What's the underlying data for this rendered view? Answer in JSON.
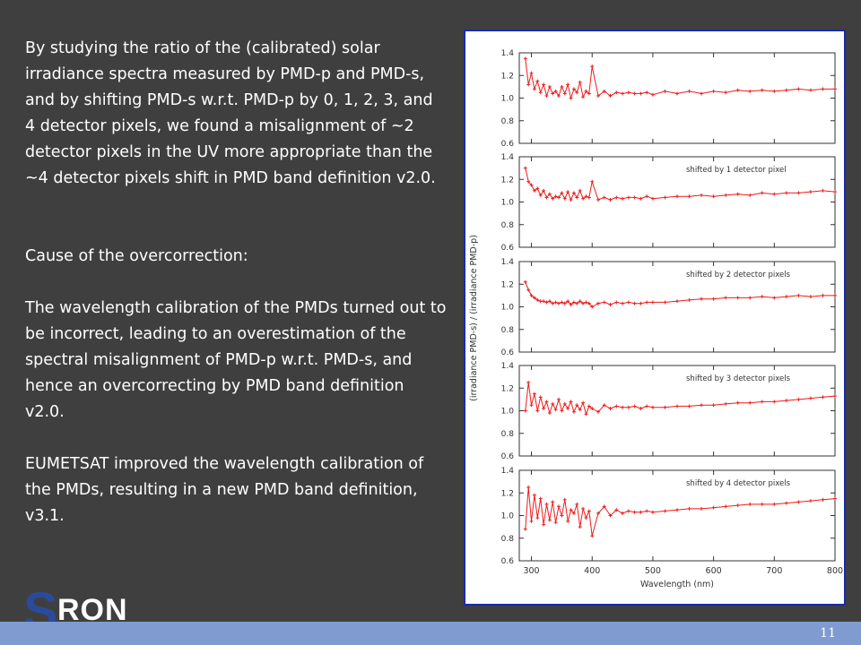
{
  "text": {
    "paragraph1": "By studying the ratio of the (calibrated) solar irradiance spectra measured by PMD-p and PMD-s, and by shifting PMD-s w.r.t. PMD-p by 0, 1, 2, 3, and 4 detector pixels, we found a misalignment of ~2 detector pixels in the UV more appropriate than the ~4 detector pixels shift in PMD band definition v2.0.",
    "paragraph2": "Cause of the overcorrection:",
    "paragraph3": "The wavelength calibration of the PMDs turned out to be incorrect, leading to an overestimation of the spectral misalignment of PMD-p w.r.t. PMD-s, and hence an overcorrecting by PMD band definition v2.0.",
    "paragraph4": "EUMETSAT improved the wavelength calibration of the PMDs, resulting in a new PMD band definition, v3.1."
  },
  "logo": {
    "s": "S",
    "ron": "RON"
  },
  "footer": {
    "page_number": "11"
  },
  "colors": {
    "background": "#3f3f3f",
    "footer_bar": "#7f9bd0",
    "frame_border": "#1a2aa8",
    "series": "#ee1c1c",
    "logo_s": "#2b4a9a"
  },
  "chart_data": {
    "type": "line",
    "ylabel": "(irradiance PMD-s) / (irradiance PMD-p)",
    "xlabel": "Wavelength (nm)",
    "xlim": [
      280,
      800
    ],
    "ylim": [
      0.6,
      1.4
    ],
    "xticks": [
      300,
      400,
      500,
      600,
      700,
      800
    ],
    "yticks": [
      0.6,
      0.8,
      1.0,
      1.2,
      1.4
    ],
    "panels": [
      {
        "label": "",
        "x": [
          290,
          295,
          300,
          305,
          310,
          315,
          320,
          325,
          330,
          335,
          340,
          345,
          350,
          355,
          360,
          365,
          370,
          375,
          380,
          385,
          390,
          395,
          400,
          410,
          420,
          430,
          440,
          450,
          460,
          470,
          480,
          490,
          500,
          520,
          540,
          560,
          580,
          600,
          620,
          640,
          660,
          680,
          700,
          720,
          740,
          760,
          780,
          800
        ],
        "y": [
          1.35,
          1.12,
          1.22,
          1.08,
          1.15,
          1.05,
          1.12,
          1.02,
          1.1,
          1.04,
          1.06,
          1.02,
          1.1,
          1.04,
          1.12,
          1.0,
          1.08,
          1.05,
          1.14,
          1.01,
          1.06,
          1.04,
          1.28,
          1.02,
          1.06,
          1.02,
          1.05,
          1.04,
          1.05,
          1.04,
          1.04,
          1.05,
          1.03,
          1.06,
          1.04,
          1.06,
          1.04,
          1.06,
          1.05,
          1.07,
          1.06,
          1.07,
          1.06,
          1.07,
          1.08,
          1.07,
          1.08,
          1.08
        ]
      },
      {
        "label": "shifted by 1 detector pixel",
        "x": [
          290,
          295,
          300,
          305,
          310,
          315,
          320,
          325,
          330,
          335,
          340,
          345,
          350,
          355,
          360,
          365,
          370,
          375,
          380,
          385,
          390,
          395,
          400,
          410,
          420,
          430,
          440,
          450,
          460,
          470,
          480,
          490,
          500,
          520,
          540,
          560,
          580,
          600,
          620,
          640,
          660,
          680,
          700,
          720,
          740,
          760,
          780,
          800
        ],
        "y": [
          1.3,
          1.18,
          1.15,
          1.1,
          1.12,
          1.06,
          1.1,
          1.04,
          1.07,
          1.03,
          1.05,
          1.04,
          1.08,
          1.03,
          1.09,
          1.02,
          1.08,
          1.04,
          1.1,
          1.03,
          1.05,
          1.04,
          1.18,
          1.02,
          1.04,
          1.02,
          1.04,
          1.03,
          1.04,
          1.04,
          1.03,
          1.05,
          1.03,
          1.04,
          1.05,
          1.05,
          1.06,
          1.05,
          1.06,
          1.07,
          1.06,
          1.08,
          1.07,
          1.08,
          1.08,
          1.09,
          1.1,
          1.09
        ]
      },
      {
        "label": "shifted by 2 detector pixels",
        "x": [
          290,
          295,
          300,
          305,
          310,
          315,
          320,
          325,
          330,
          335,
          340,
          345,
          350,
          355,
          360,
          365,
          370,
          375,
          380,
          385,
          390,
          395,
          400,
          410,
          420,
          430,
          440,
          450,
          460,
          470,
          480,
          490,
          500,
          520,
          540,
          560,
          580,
          600,
          620,
          640,
          660,
          680,
          700,
          720,
          740,
          760,
          780,
          800
        ],
        "y": [
          1.22,
          1.15,
          1.1,
          1.08,
          1.06,
          1.05,
          1.05,
          1.04,
          1.05,
          1.03,
          1.04,
          1.03,
          1.04,
          1.03,
          1.05,
          1.02,
          1.04,
          1.03,
          1.05,
          1.03,
          1.04,
          1.03,
          1.0,
          1.03,
          1.04,
          1.02,
          1.04,
          1.03,
          1.04,
          1.03,
          1.03,
          1.04,
          1.04,
          1.04,
          1.05,
          1.06,
          1.07,
          1.07,
          1.08,
          1.08,
          1.08,
          1.09,
          1.08,
          1.09,
          1.1,
          1.09,
          1.1,
          1.1
        ]
      },
      {
        "label": "shifted by 3 detector pixels",
        "x": [
          290,
          295,
          300,
          305,
          310,
          315,
          320,
          325,
          330,
          335,
          340,
          345,
          350,
          355,
          360,
          365,
          370,
          375,
          380,
          385,
          390,
          395,
          400,
          410,
          420,
          430,
          440,
          450,
          460,
          470,
          480,
          490,
          500,
          520,
          540,
          560,
          580,
          600,
          620,
          640,
          660,
          680,
          700,
          720,
          740,
          760,
          780,
          800
        ],
        "y": [
          1.0,
          1.25,
          1.05,
          1.15,
          1.0,
          1.12,
          1.02,
          1.08,
          0.98,
          1.06,
          1.01,
          1.1,
          1.0,
          1.06,
          1.02,
          1.08,
          0.99,
          1.05,
          1.01,
          1.07,
          0.97,
          1.04,
          1.02,
          0.99,
          1.05,
          1.02,
          1.04,
          1.03,
          1.03,
          1.04,
          1.02,
          1.04,
          1.03,
          1.03,
          1.04,
          1.04,
          1.05,
          1.05,
          1.06,
          1.07,
          1.07,
          1.08,
          1.08,
          1.09,
          1.1,
          1.11,
          1.12,
          1.13
        ]
      },
      {
        "label": "shifted by 4 detector pixels",
        "x": [
          290,
          295,
          300,
          305,
          310,
          315,
          320,
          325,
          330,
          335,
          340,
          345,
          350,
          355,
          360,
          365,
          370,
          375,
          380,
          385,
          390,
          395,
          400,
          410,
          420,
          430,
          440,
          450,
          460,
          470,
          480,
          490,
          500,
          520,
          540,
          560,
          580,
          600,
          620,
          640,
          660,
          680,
          700,
          720,
          740,
          760,
          780,
          800
        ],
        "y": [
          0.88,
          1.25,
          0.95,
          1.18,
          0.98,
          1.15,
          0.92,
          1.1,
          0.96,
          1.12,
          0.94,
          1.08,
          1.0,
          1.14,
          0.95,
          1.05,
          1.02,
          1.1,
          0.9,
          1.06,
          0.98,
          1.04,
          0.82,
          1.02,
          1.08,
          1.0,
          1.05,
          1.02,
          1.04,
          1.03,
          1.03,
          1.04,
          1.03,
          1.04,
          1.05,
          1.06,
          1.06,
          1.07,
          1.08,
          1.09,
          1.1,
          1.1,
          1.1,
          1.11,
          1.12,
          1.13,
          1.14,
          1.15
        ]
      }
    ]
  }
}
